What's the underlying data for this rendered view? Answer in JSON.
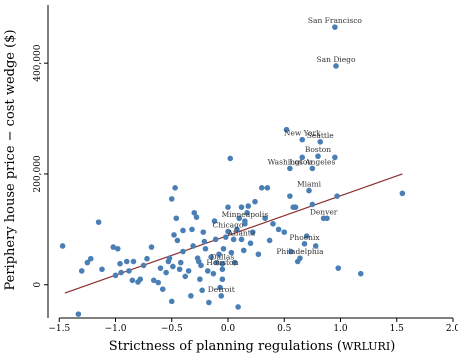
{
  "chart_data": {
    "type": "scatter",
    "title": "",
    "xlabel": "Strictness of planning regulations (",
    "xlabel_abbrev": "WRLURI",
    "xlabel_close": ")",
    "ylabel": "Periphery house price − cost wedge ($)",
    "xlim": [
      -1.6,
      2.0
    ],
    "ylim": [
      -60000,
      505000
    ],
    "x_ticks": [
      -1.5,
      -1.0,
      -0.5,
      0.0,
      0.5,
      1.0,
      1.5,
      2.0
    ],
    "x_tick_labels": [
      "−1.5",
      "−1.0",
      "−0.5",
      "0.0",
      "0.5",
      "1.0",
      "1.5",
      "2.0"
    ],
    "y_ticks": [
      0,
      200000,
      400000
    ],
    "y_tick_labels": [
      "0",
      "200,000",
      "400,000"
    ],
    "trend_line": {
      "x": [
        -1.45,
        1.55
      ],
      "y": [
        -15000,
        200000
      ]
    },
    "labeled_points": [
      {
        "name": "San Francisco",
        "x": 0.95,
        "y": 465000
      },
      {
        "name": "San Diego",
        "x": 0.96,
        "y": 395000
      },
      {
        "name": "New York",
        "x": 0.66,
        "y": 262000
      },
      {
        "name": "Seattle",
        "x": 0.82,
        "y": 258000
      },
      {
        "name": "Boston",
        "x": 0.8,
        "y": 232000
      },
      {
        "name": "Washington",
        "x": 0.55,
        "y": 210000
      },
      {
        "name": "Los Angeles",
        "x": 0.75,
        "y": 210000
      },
      {
        "name": "Miami",
        "x": 0.72,
        "y": 170000
      },
      {
        "name": "Denver",
        "x": 0.85,
        "y": 120000
      },
      {
        "name": "Minneapolis",
        "x": 0.15,
        "y": 115000
      },
      {
        "name": "Chicago",
        "x": 0.0,
        "y": 96000
      },
      {
        "name": "Atlanta",
        "x": 0.12,
        "y": 82000
      },
      {
        "name": "Phoenix",
        "x": 0.68,
        "y": 74000
      },
      {
        "name": "Philadelphia",
        "x": 0.64,
        "y": 48000
      },
      {
        "name": "Dallas",
        "x": -0.05,
        "y": 38000
      },
      {
        "name": "Houston",
        "x": -0.05,
        "y": 28000
      },
      {
        "name": "Detroit",
        "x": -0.06,
        "y": -20000
      }
    ],
    "points": [
      [
        -1.47,
        70000
      ],
      [
        -1.33,
        -53000
      ],
      [
        -1.3,
        25000
      ],
      [
        -1.25,
        40000
      ],
      [
        -1.22,
        47000
      ],
      [
        -1.15,
        113000
      ],
      [
        -1.12,
        28000
      ],
      [
        -1.02,
        68000
      ],
      [
        -1.0,
        17000
      ],
      [
        -0.98,
        65000
      ],
      [
        -0.96,
        38000
      ],
      [
        -0.95,
        22000
      ],
      [
        -0.9,
        42000
      ],
      [
        -0.88,
        25000
      ],
      [
        -0.85,
        8000
      ],
      [
        -0.84,
        42000
      ],
      [
        -0.8,
        5000
      ],
      [
        -0.78,
        10000
      ],
      [
        -0.75,
        35000
      ],
      [
        -0.72,
        47000
      ],
      [
        -0.68,
        68000
      ],
      [
        -0.66,
        8000
      ],
      [
        -0.62,
        4000
      ],
      [
        -0.6,
        30000
      ],
      [
        -0.58,
        -8000
      ],
      [
        -0.55,
        22000
      ],
      [
        -0.53,
        42000
      ],
      [
        -0.52,
        48000
      ],
      [
        -0.5,
        -30000
      ],
      [
        -0.5,
        155000
      ],
      [
        -0.49,
        33000
      ],
      [
        -0.48,
        90000
      ],
      [
        -0.47,
        175000
      ],
      [
        -0.46,
        120000
      ],
      [
        -0.45,
        80000
      ],
      [
        -0.43,
        28000
      ],
      [
        -0.42,
        40000
      ],
      [
        -0.4,
        60000
      ],
      [
        -0.4,
        98000
      ],
      [
        -0.38,
        15000
      ],
      [
        -0.35,
        25000
      ],
      [
        -0.33,
        -20000
      ],
      [
        -0.32,
        100000
      ],
      [
        -0.31,
        70000
      ],
      [
        -0.3,
        130000
      ],
      [
        -0.28,
        122000
      ],
      [
        -0.27,
        48000
      ],
      [
        -0.26,
        42000
      ],
      [
        -0.25,
        10000
      ],
      [
        -0.24,
        35000
      ],
      [
        -0.23,
        -10000
      ],
      [
        -0.22,
        95000
      ],
      [
        -0.21,
        78000
      ],
      [
        -0.2,
        65000
      ],
      [
        -0.18,
        25000
      ],
      [
        -0.17,
        -32000
      ],
      [
        -0.15,
        50000
      ],
      [
        -0.13,
        20000
      ],
      [
        -0.12,
        115000
      ],
      [
        -0.11,
        82000
      ],
      [
        -0.1,
        40000
      ],
      [
        -0.08,
        55000
      ],
      [
        -0.07,
        -5000
      ],
      [
        -0.05,
        10000
      ],
      [
        -0.04,
        65000
      ],
      [
        -0.02,
        86000
      ],
      [
        0.0,
        140000
      ],
      [
        0.02,
        228000
      ],
      [
        0.03,
        58000
      ],
      [
        0.05,
        82000
      ],
      [
        0.06,
        40000
      ],
      [
        0.08,
        100000
      ],
      [
        0.09,
        -40000
      ],
      [
        0.1,
        120000
      ],
      [
        0.12,
        140000
      ],
      [
        0.14,
        62000
      ],
      [
        0.15,
        110000
      ],
      [
        0.17,
        130000
      ],
      [
        0.18,
        142000
      ],
      [
        0.2,
        75000
      ],
      [
        0.22,
        95000
      ],
      [
        0.24,
        150000
      ],
      [
        0.27,
        55000
      ],
      [
        0.3,
        175000
      ],
      [
        0.33,
        120000
      ],
      [
        0.35,
        175000
      ],
      [
        0.37,
        80000
      ],
      [
        0.4,
        110000
      ],
      [
        0.45,
        100000
      ],
      [
        0.5,
        95000
      ],
      [
        0.52,
        280000
      ],
      [
        0.55,
        160000
      ],
      [
        0.56,
        60000
      ],
      [
        0.58,
        140000
      ],
      [
        0.6,
        140000
      ],
      [
        0.62,
        42000
      ],
      [
        0.66,
        230000
      ],
      [
        0.7,
        88000
      ],
      [
        0.75,
        145000
      ],
      [
        0.78,
        70000
      ],
      [
        0.88,
        120000
      ],
      [
        0.95,
        230000
      ],
      [
        0.97,
        160000
      ],
      [
        0.98,
        30000
      ],
      [
        1.18,
        20000
      ],
      [
        1.55,
        165000
      ]
    ]
  }
}
